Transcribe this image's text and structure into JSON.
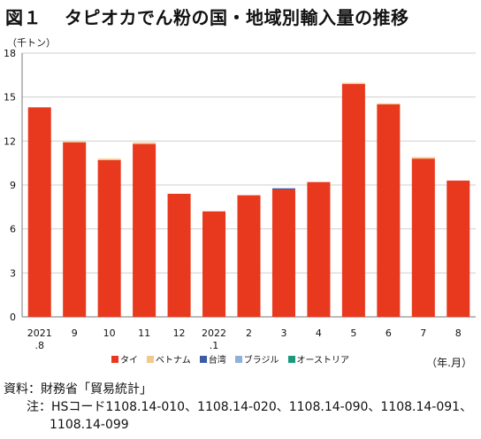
{
  "header": {
    "fig_label": "図１",
    "title": "タピオカでん粉の国・地域別輸入量の推移"
  },
  "chart_data": {
    "type": "bar",
    "stacked": true,
    "ylabel": "（千トン）",
    "xunit": "（年.月）",
    "ylim": [
      0,
      18
    ],
    "yticks": [
      "0",
      "3",
      "6",
      "9",
      "12",
      "15",
      "18"
    ],
    "ytick_values": [
      0,
      3,
      6,
      9,
      12,
      15,
      18
    ],
    "categories": [
      [
        "2021",
        ".8"
      ],
      [
        "9"
      ],
      [
        "10"
      ],
      [
        "11"
      ],
      [
        "12"
      ],
      [
        "2022",
        ".1"
      ],
      [
        "2"
      ],
      [
        "3"
      ],
      [
        "4"
      ],
      [
        "5"
      ],
      [
        "6"
      ],
      [
        "7"
      ],
      [
        "8"
      ]
    ],
    "grid": "horizontal",
    "legend_position": "bottom",
    "series": [
      {
        "name": "タイ",
        "color": "#e8391f",
        "values": [
          14.3,
          11.9,
          10.7,
          11.8,
          8.4,
          7.2,
          8.3,
          8.7,
          9.2,
          15.9,
          14.5,
          10.8,
          9.3
        ]
      },
      {
        "name": "ベトナム",
        "color": "#f3c98a",
        "values": [
          0.0,
          0.05,
          0.1,
          0.1,
          0.0,
          0.0,
          0.0,
          0.0,
          0.0,
          0.05,
          0.05,
          0.1,
          0.0
        ]
      },
      {
        "name": "台湾",
        "color": "#3b5ba5",
        "values": [
          0,
          0,
          0,
          0,
          0,
          0,
          0,
          0.05,
          0,
          0,
          0,
          0,
          0
        ]
      },
      {
        "name": "ブラジル",
        "color": "#8fb1d9",
        "values": [
          0,
          0,
          0,
          0,
          0,
          0,
          0,
          0,
          0,
          0,
          0,
          0,
          0
        ]
      },
      {
        "name": "オーストリア",
        "color": "#1a9a7a",
        "values": [
          0,
          0,
          0,
          0,
          0,
          0,
          0,
          0,
          0,
          0,
          0,
          0,
          0
        ]
      }
    ]
  },
  "footer": {
    "source": "資料：財務省「貿易統計」",
    "note": "注：HSコード1108.14-010、1108.14-020、1108.14-090、1108.14-091、",
    "note_cont": "1108.14-099"
  }
}
